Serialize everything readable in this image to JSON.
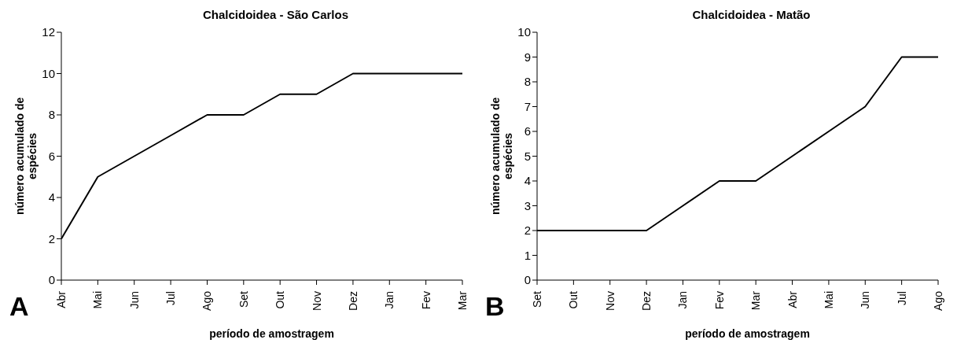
{
  "chart_data": [
    {
      "type": "line",
      "title": "Chalcidoidea - São Carlos",
      "xlabel": "período de amostragem",
      "ylabel": "número acumulado de espécies",
      "categories": [
        "Abr",
        "Mai",
        "Jun",
        "Jul",
        "Ago",
        "Set",
        "Out",
        "Nov",
        "Dez",
        "Jan",
        "Fev",
        "Mar"
      ],
      "values": [
        2,
        5,
        6,
        7,
        8,
        8,
        9,
        9,
        10,
        10,
        10,
        10
      ],
      "color": "#000000",
      "ylim": [
        0,
        12
      ],
      "yticks": [
        0,
        2,
        4,
        6,
        8,
        10,
        12
      ],
      "annotations": [
        "A"
      ]
    },
    {
      "type": "line",
      "title": "Chalcidoidea - Matão",
      "xlabel": "período de amostragem",
      "ylabel": "número acumulado de espécies",
      "categories": [
        "Set",
        "Out",
        "Nov",
        "Dez",
        "Jan",
        "Fev",
        "Mar",
        "Abr",
        "Mai",
        "Jun",
        "Jul",
        "Ago"
      ],
      "values": [
        2,
        2,
        2,
        2,
        3,
        4,
        4,
        5,
        6,
        7,
        9,
        9
      ],
      "color": "#000000",
      "ylim": [
        0,
        10
      ],
      "yticks": [
        0,
        1,
        2,
        3,
        4,
        5,
        6,
        7,
        8,
        9,
        10
      ],
      "annotations": [
        "B"
      ]
    }
  ]
}
